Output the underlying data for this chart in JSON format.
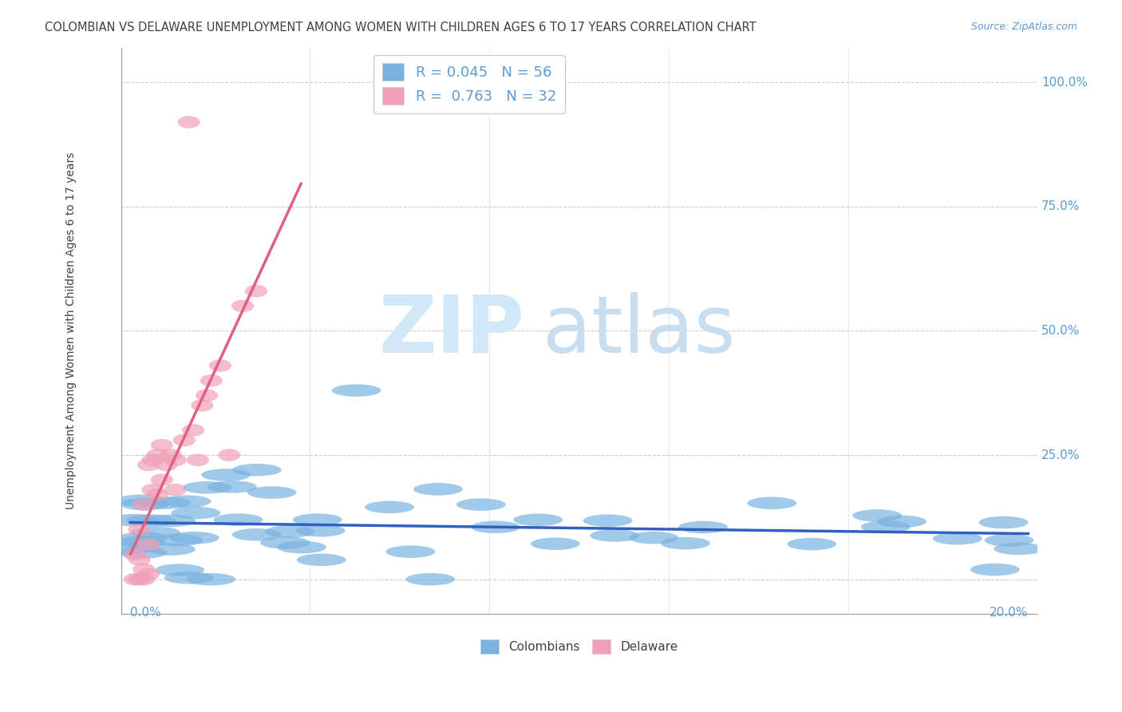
{
  "title": "COLOMBIAN VS DELAWARE UNEMPLOYMENT AMONG WOMEN WITH CHILDREN AGES 6 TO 17 YEARS CORRELATION CHART",
  "source": "Source: ZipAtlas.com",
  "ylabel": "Unemployment Among Women with Children Ages 6 to 17 years",
  "watermark_zip_color": "#d0e8f8",
  "watermark_atlas_color": "#c8ddf0",
  "colombians_R": 0.045,
  "colombians_N": 56,
  "delaware_R": 0.763,
  "delaware_N": 32,
  "blue_color": "#7ab3e0",
  "pink_color": "#f0a0b8",
  "blue_line_color": "#3060c0",
  "pink_line_color": "#e06080",
  "title_color": "#404040",
  "source_color": "#5b9bd5",
  "axis_label_color": "#5b9bd5",
  "ylabel_color": "#404040",
  "legend_text_color": "#5b9bd5",
  "bottom_legend_text_color": "#404040",
  "grid_color": "#cccccc",
  "ytick_values": [
    0.25,
    0.5,
    0.75,
    1.0
  ],
  "ytick_labels": [
    "25.0%",
    "50.0%",
    "75.0%",
    "100.0%"
  ],
  "xlim": [
    -0.002,
    0.202
  ],
  "ylim": [
    -0.07,
    1.07
  ]
}
